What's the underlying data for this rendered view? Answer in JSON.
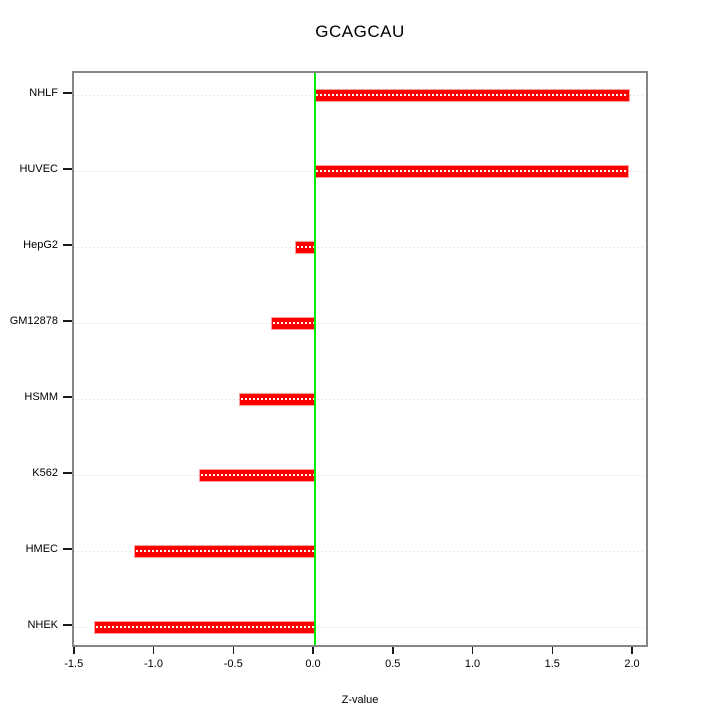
{
  "title": "GCAGCAU",
  "chart_data": {
    "type": "bar",
    "orientation": "horizontal",
    "title": "GCAGCAU",
    "xlabel": "Z-value",
    "ylabel": "",
    "categories": [
      "NHLF",
      "HUVEC",
      "HepG2",
      "GM12878",
      "HSMM",
      "K562",
      "HMEC",
      "NHEK"
    ],
    "values": [
      1.97,
      1.96,
      -0.12,
      -0.27,
      -0.47,
      -0.72,
      -1.13,
      -1.38
    ],
    "xlim": [
      -1.5,
      2.0
    ],
    "x_ticks": [
      -1.5,
      -1.0,
      -0.5,
      0.0,
      0.5,
      1.0,
      1.5,
      2.0
    ],
    "x_tick_labels": [
      "-1.5",
      "-1.0",
      "-0.5",
      "0.0",
      "0.5",
      "1.0",
      "1.5",
      "2.0"
    ],
    "grid": "horizontal-dotted",
    "legend": "none",
    "bar_color": "#fe0000",
    "zero_line_color": "#00ee00",
    "grid_color": "#d2d2d2",
    "box_color": "#868686",
    "zero_line_x": 0.0
  }
}
